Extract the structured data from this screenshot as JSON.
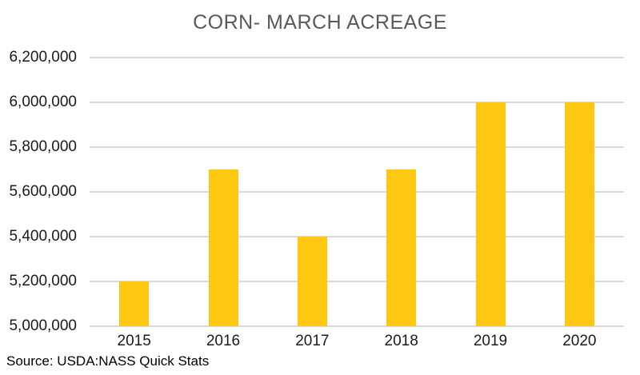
{
  "title": "CORN- MARCH ACREAGE",
  "source_note": "Source: USDA:NASS Quick Stats",
  "colors": {
    "bar": "#FDC712",
    "gridline": "#D9D9D9",
    "title_text": "#595959",
    "axis_text": "#1A1A1A"
  },
  "chart_data": {
    "type": "bar",
    "title": "CORN- MARCH ACREAGE",
    "categories": [
      "2015",
      "2016",
      "2017",
      "2018",
      "2019",
      "2020"
    ],
    "values": [
      5200000,
      5700000,
      5400000,
      5700000,
      6000000,
      6000000
    ],
    "xlabel": "",
    "ylabel": "",
    "ylim": [
      5000000,
      6200000
    ],
    "ytick_step": 200000,
    "ytick_labels": [
      "5,000,000",
      "5,200,000",
      "5,400,000",
      "5,600,000",
      "5,800,000",
      "6,000,000",
      "6,200,000"
    ],
    "grid": true,
    "legend": false,
    "legend_position": "none",
    "bar_color": "#FDC712",
    "source": "Source: USDA:NASS Quick Stats"
  }
}
